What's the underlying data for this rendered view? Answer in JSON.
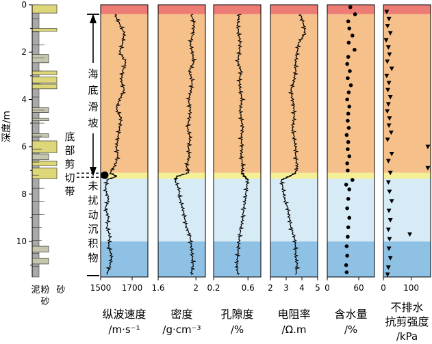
{
  "chart_data": {
    "type": "line",
    "depth_axis": {
      "label": "深度/m",
      "range": [
        0,
        11.5
      ],
      "ticks": [
        0,
        2,
        4,
        6,
        8,
        10
      ],
      "tick_labels": [
        "0",
        "2",
        "4",
        "6",
        "8",
        "10"
      ]
    },
    "zones": [
      {
        "name": "top",
        "label": "",
        "from": 0.0,
        "to": 0.4,
        "color": "#ec7c74"
      },
      {
        "name": "slide",
        "label": "海底滑坡",
        "from": 0.4,
        "to": 7.1,
        "color": "#f5c08a"
      },
      {
        "name": "shear",
        "label": "底部剪切带",
        "from": 7.1,
        "to": 7.35,
        "color": "#f5ef96"
      },
      {
        "name": "undisturbed-upper",
        "label": "未扰动沉积物",
        "from": 7.35,
        "to": 10.0,
        "color": "#d7ebf7"
      },
      {
        "name": "undisturbed-lower",
        "label": "",
        "from": 10.0,
        "to": 11.5,
        "color": "#8fc1e4"
      }
    ],
    "lithology_legend": [
      "泥",
      "粉砂",
      "砂"
    ],
    "lithology_colors": {
      "mud": "#a9a9a9",
      "silt": "#c6c6ae",
      "sand": "#ded77a"
    },
    "lithology_beds": [
      {
        "top": 0.0,
        "bottom": 0.35,
        "type": "sand"
      },
      {
        "top": 1.0,
        "bottom": 1.12,
        "type": "sand"
      },
      {
        "top": 2.1,
        "bottom": 2.45,
        "type": "silt"
      },
      {
        "top": 2.8,
        "bottom": 2.95,
        "type": "sand"
      },
      {
        "top": 3.05,
        "bottom": 3.3,
        "type": "sand"
      },
      {
        "top": 3.35,
        "bottom": 3.55,
        "type": "sand"
      },
      {
        "top": 4.35,
        "bottom": 4.55,
        "type": "silt"
      },
      {
        "top": 4.8,
        "bottom": 4.9,
        "type": "silt"
      },
      {
        "top": 5.45,
        "bottom": 5.6,
        "type": "silt"
      },
      {
        "top": 5.75,
        "bottom": 6.25,
        "type": "sand"
      },
      {
        "top": 6.3,
        "bottom": 6.55,
        "type": "silt"
      },
      {
        "top": 6.6,
        "bottom": 6.8,
        "type": "sand"
      },
      {
        "top": 6.9,
        "bottom": 7.35,
        "type": "sand"
      },
      {
        "top": 10.2,
        "bottom": 10.45,
        "type": "silt"
      },
      {
        "top": 10.7,
        "bottom": 10.95,
        "type": "silt"
      }
    ],
    "marker_depth": 7.2,
    "panels": [
      {
        "name": "p-wave-velocity",
        "label": "纵波速度",
        "unit": "/m·s⁻¹",
        "xlim": [
          1500,
          1800
        ],
        "ticks": [
          1500,
          1700
        ],
        "tick_labels": [
          "1500",
          "1700"
        ],
        "style": "line",
        "depth": [
          0.4,
          0.8,
          1.2,
          1.6,
          2.0,
          2.4,
          2.8,
          3.2,
          3.6,
          4.0,
          4.4,
          4.8,
          5.2,
          5.6,
          6.0,
          6.4,
          6.8,
          7.1,
          7.25,
          7.4,
          7.8,
          8.2,
          8.6,
          9.0,
          9.4,
          9.8,
          10.2,
          10.6,
          11.0,
          11.4
        ],
        "values": [
          1590,
          1620,
          1650,
          1640,
          1620,
          1660,
          1640,
          1630,
          1650,
          1620,
          1600,
          1630,
          1620,
          1610,
          1600,
          1610,
          1590,
          1560,
          1600,
          1540,
          1530,
          1550,
          1530,
          1550,
          1540,
          1560,
          1550,
          1570,
          1560,
          1540
        ]
      },
      {
        "name": "density",
        "label": "密度",
        "unit": "/g·cm⁻³",
        "xlim": [
          1.6,
          2.1
        ],
        "ticks": [
          1.6,
          2
        ],
        "tick_labels": [
          "1.6",
          "2"
        ],
        "style": "line",
        "depth": [
          0.4,
          0.8,
          1.2,
          1.6,
          2.0,
          2.4,
          2.8,
          3.2,
          3.6,
          4.0,
          4.4,
          4.8,
          5.2,
          5.6,
          6.0,
          6.4,
          6.8,
          7.1,
          7.25,
          7.4,
          7.8,
          8.2,
          8.6,
          9.0,
          9.4,
          9.8,
          10.2,
          10.6,
          11.0,
          11.4
        ],
        "values": [
          1.95,
          1.98,
          1.97,
          1.94,
          1.96,
          1.98,
          1.93,
          1.96,
          1.95,
          1.92,
          1.94,
          1.93,
          1.91,
          1.94,
          1.92,
          1.93,
          1.9,
          1.92,
          1.8,
          1.78,
          1.82,
          1.83,
          1.86,
          1.88,
          1.9,
          1.94,
          1.95,
          1.96,
          1.97,
          1.95
        ]
      },
      {
        "name": "porosity",
        "label": "孔隙度",
        "unit": "/%",
        "xlim": [
          0.2,
          0.75
        ],
        "ticks": [
          0.2,
          0.6
        ],
        "tick_labels": [
          "0.2",
          "0.6"
        ],
        "style": "line",
        "depth": [
          0.4,
          0.8,
          1.2,
          1.6,
          2.0,
          2.4,
          2.8,
          3.2,
          3.6,
          4.0,
          4.4,
          4.8,
          5.2,
          5.6,
          6.0,
          6.4,
          6.8,
          7.1,
          7.25,
          7.4,
          7.8,
          8.2,
          8.6,
          9.0,
          9.4,
          9.8,
          10.2,
          10.6,
          11.0,
          11.4
        ],
        "values": [
          0.5,
          0.48,
          0.49,
          0.51,
          0.5,
          0.48,
          0.52,
          0.5,
          0.51,
          0.53,
          0.51,
          0.52,
          0.54,
          0.52,
          0.53,
          0.52,
          0.54,
          0.53,
          0.56,
          0.6,
          0.58,
          0.57,
          0.55,
          0.54,
          0.52,
          0.5,
          0.49,
          0.48,
          0.47,
          0.48
        ]
      },
      {
        "name": "resistivity",
        "label": "电阻率",
        "unit": "/Ω.m",
        "xlim": [
          2,
          5
        ],
        "ticks": [
          2,
          3,
          4,
          5
        ],
        "tick_labels": [
          "2",
          "3",
          "4",
          "5"
        ],
        "style": "line",
        "depth": [
          0.4,
          0.8,
          1.2,
          1.6,
          2.0,
          2.4,
          2.8,
          3.2,
          3.6,
          4.0,
          4.4,
          4.8,
          5.2,
          5.6,
          6.0,
          6.4,
          6.8,
          7.1,
          7.25,
          7.4,
          7.8,
          8.2,
          8.6,
          9.0,
          9.4,
          9.8,
          10.2,
          10.6,
          11.0,
          11.4
        ],
        "values": [
          3.9,
          4.1,
          4.2,
          3.8,
          3.7,
          3.6,
          3.6,
          3.5,
          3.3,
          3.4,
          3.5,
          3.5,
          3.4,
          3.5,
          3.6,
          3.6,
          3.7,
          3.6,
          3.2,
          2.7,
          2.8,
          2.9,
          3.1,
          3.2,
          3.3,
          3.5,
          3.6,
          3.6,
          3.7,
          3.6
        ]
      },
      {
        "name": "water-content",
        "label": "含水量",
        "unit": "/%",
        "xlim": [
          0,
          90
        ],
        "ticks": [
          0,
          60
        ],
        "tick_labels": [
          "0",
          "60"
        ],
        "style": "dots",
        "depth": [
          0.1,
          0.4,
          0.7,
          1.0,
          1.3,
          1.6,
          1.9,
          2.2,
          2.5,
          2.8,
          3.1,
          3.4,
          3.7,
          4.0,
          4.3,
          4.6,
          4.9,
          5.2,
          5.5,
          5.8,
          6.1,
          6.4,
          6.7,
          7.0,
          7.4,
          7.6,
          7.8,
          8.2,
          8.6,
          9.0,
          9.4,
          9.8,
          10.2,
          10.6,
          11.0,
          11.3
        ],
        "values": [
          44,
          53,
          40,
          42,
          48,
          41,
          52,
          40,
          38,
          43,
          39,
          45,
          41,
          38,
          42,
          40,
          39,
          41,
          37,
          40,
          39,
          42,
          38,
          39,
          48,
          36,
          42,
          40,
          38,
          42,
          40,
          39,
          37,
          38,
          36,
          37
        ]
      },
      {
        "name": "undrained-shear-strength",
        "label": "不排水\n抗剪强度",
        "unit": "/kPa",
        "xlim": [
          0,
          170
        ],
        "ticks": [
          0,
          100
        ],
        "tick_labels": [
          "0",
          "100"
        ],
        "style": "triangles",
        "depth": [
          0.3,
          0.6,
          0.9,
          1.2,
          1.5,
          1.8,
          2.1,
          2.4,
          2.7,
          3.0,
          3.3,
          3.6,
          3.9,
          4.2,
          4.5,
          4.8,
          5.1,
          5.4,
          5.7,
          6.0,
          6.3,
          6.6,
          6.9,
          7.1,
          7.5,
          7.9,
          8.3,
          8.7,
          9.1,
          9.5,
          9.7,
          9.9,
          10.3,
          10.7,
          11.1,
          11.4
        ],
        "values": [
          12,
          20,
          15,
          25,
          10,
          18,
          22,
          14,
          30,
          12,
          20,
          16,
          25,
          18,
          14,
          22,
          20,
          28,
          15,
          160,
          30,
          18,
          160,
          25,
          18,
          22,
          30,
          20,
          25,
          18,
          95,
          22,
          20,
          25,
          18,
          15
        ]
      }
    ]
  }
}
